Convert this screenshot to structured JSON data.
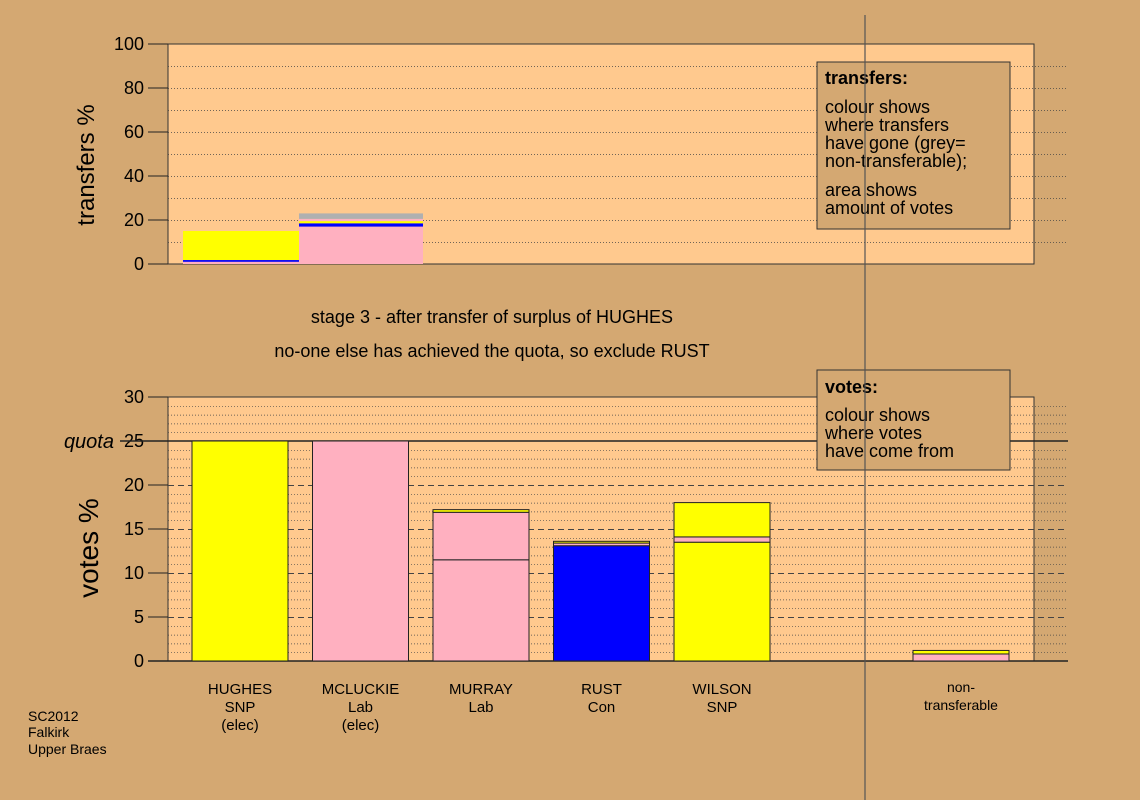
{
  "stage_text": "stage 3 - after transfer of surplus of HUGHES",
  "status_text": "no-one else has achieved the quota, so exclude RUST",
  "footer": [
    "SC2012",
    "Falkirk",
    "Upper Braes"
  ],
  "colors": {
    "background": "#d4a872",
    "plot_area": "#ffc98e",
    "SNP": "#ffff00",
    "Lab": "#ffb0c0",
    "Con": "#0000ff",
    "non_transferable": "#b0b0b0"
  },
  "chart_data": [
    {
      "type": "bar",
      "stacked": true,
      "ylabel": "transfers %",
      "ylim": [
        0,
        100
      ],
      "yticks": [
        0,
        20,
        40,
        60,
        80,
        100
      ],
      "note": {
        "title": "transfers:",
        "lines": [
          "colour shows",
          "where transfers",
          "have gone (grey=",
          "non-transferable);",
          "area shows",
          "amount of votes"
        ]
      },
      "bars": [
        {
          "name": "transfer-1",
          "segments": [
            {
              "party": "Lab",
              "from": 0,
              "to": 1
            },
            {
              "party": "Con",
              "from": 1,
              "to": 1.8
            },
            {
              "party": "SNP",
              "from": 1.8,
              "to": 15
            }
          ]
        },
        {
          "name": "transfer-2",
          "segments": [
            {
              "party": "Lab",
              "from": 0,
              "to": 17
            },
            {
              "party": "Con",
              "from": 17,
              "to": 18.5
            },
            {
              "party": "SNP",
              "from": 18.5,
              "to": 19.5
            },
            {
              "party": "Lab",
              "from": 19.5,
              "to": 20.5
            },
            {
              "party": "non_transferable",
              "from": 20.5,
              "to": 23
            }
          ]
        }
      ]
    },
    {
      "type": "bar",
      "stacked": true,
      "ylabel": "votes %",
      "ylim": [
        0,
        30
      ],
      "yticks": [
        0,
        5,
        10,
        15,
        20,
        25,
        30
      ],
      "quota": 25,
      "quota_label": "quota",
      "note": {
        "title": "votes:",
        "lines": [
          "colour shows",
          "where votes",
          "have come from"
        ]
      },
      "candidates": [
        {
          "name": "HUGHES",
          "party": "SNP",
          "status": "(elec)",
          "segments": [
            {
              "party": "SNP",
              "from": 0,
              "to": 25
            }
          ]
        },
        {
          "name": "MCLUCKIE",
          "party": "Lab",
          "status": "(elec)",
          "segments": [
            {
              "party": "Lab",
              "from": 0,
              "to": 25
            }
          ]
        },
        {
          "name": "MURRAY",
          "party": "Lab",
          "status": "",
          "segments": [
            {
              "party": "Lab",
              "from": 0,
              "to": 11.5
            },
            {
              "party": "Lab",
              "from": 11.5,
              "to": 16.9
            },
            {
              "party": "SNP",
              "from": 16.9,
              "to": 17.2
            }
          ]
        },
        {
          "name": "RUST",
          "party": "Con",
          "status": "",
          "segments": [
            {
              "party": "Con",
              "from": 0,
              "to": 13.1
            },
            {
              "party": "Lab",
              "from": 13.1,
              "to": 13.4
            },
            {
              "party": "SNP",
              "from": 13.4,
              "to": 13.6
            }
          ]
        },
        {
          "name": "WILSON",
          "party": "SNP",
          "status": "",
          "segments": [
            {
              "party": "SNP",
              "from": 0,
              "to": 13.5
            },
            {
              "party": "Lab",
              "from": 13.5,
              "to": 14.1
            },
            {
              "party": "SNP",
              "from": 14.1,
              "to": 18
            }
          ]
        }
      ],
      "non_transferable": {
        "label": [
          "non-",
          "transferable"
        ],
        "segments": [
          {
            "party": "Lab",
            "from": 0,
            "to": 0.8
          },
          {
            "party": "SNP",
            "from": 0.8,
            "to": 1.2
          }
        ]
      }
    }
  ]
}
